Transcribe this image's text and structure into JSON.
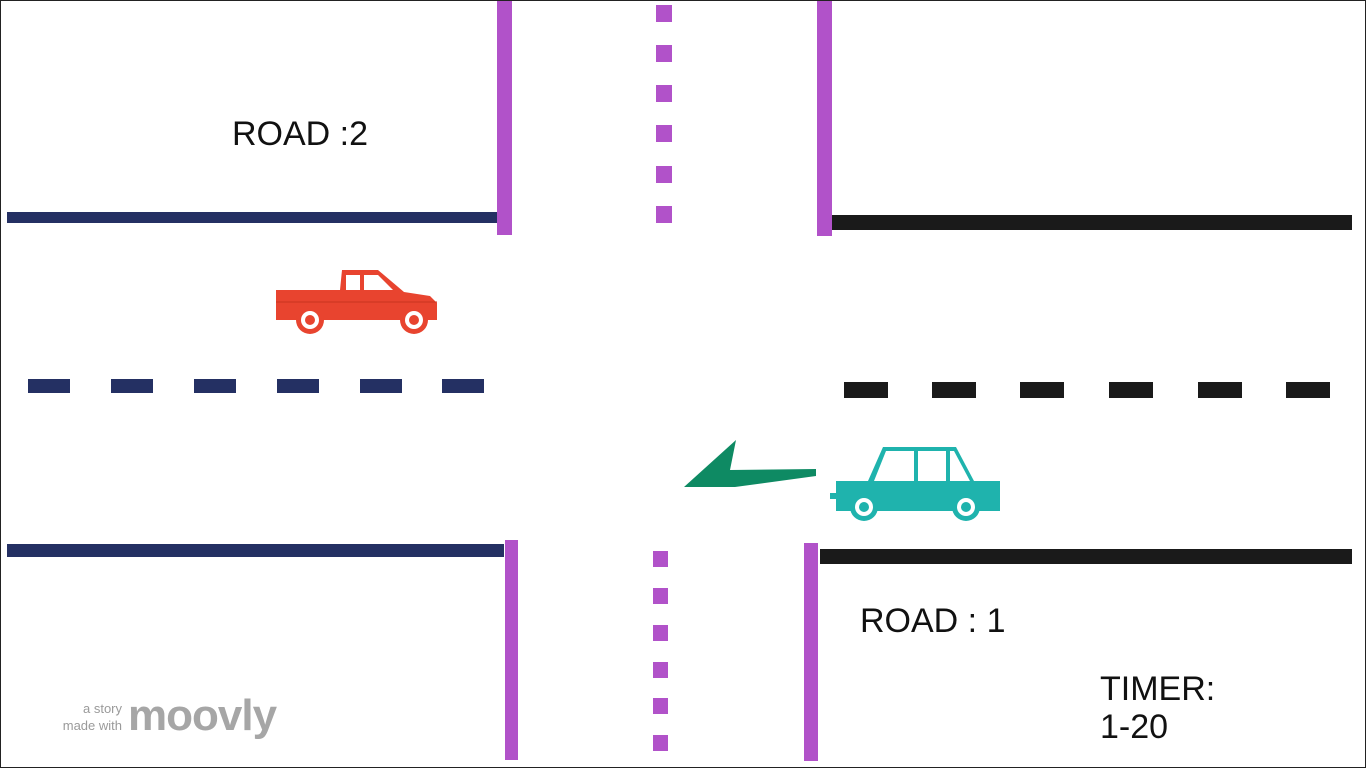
{
  "scene": {
    "road_2_label": "ROAD :2",
    "road_1_label": "ROAD : 1",
    "timer_label": "TIMER:",
    "timer_value": "1-20"
  },
  "vehicles": {
    "pickup_truck": {
      "color": "#e8442f",
      "icon": "pickup-truck-icon"
    },
    "sedan_car": {
      "color": "#1fb3ad",
      "icon": "car-icon"
    },
    "direction_arrow": {
      "color": "#0e8a63",
      "icon": "arrow-left-icon"
    }
  },
  "colors": {
    "road_2_lines": "#243063",
    "road_1_lines": "#1a1a1a",
    "crossings": "#b152c9"
  },
  "branding": {
    "tagline_line1": "a story",
    "tagline_line2": "made with",
    "logo_text": "moovly"
  }
}
